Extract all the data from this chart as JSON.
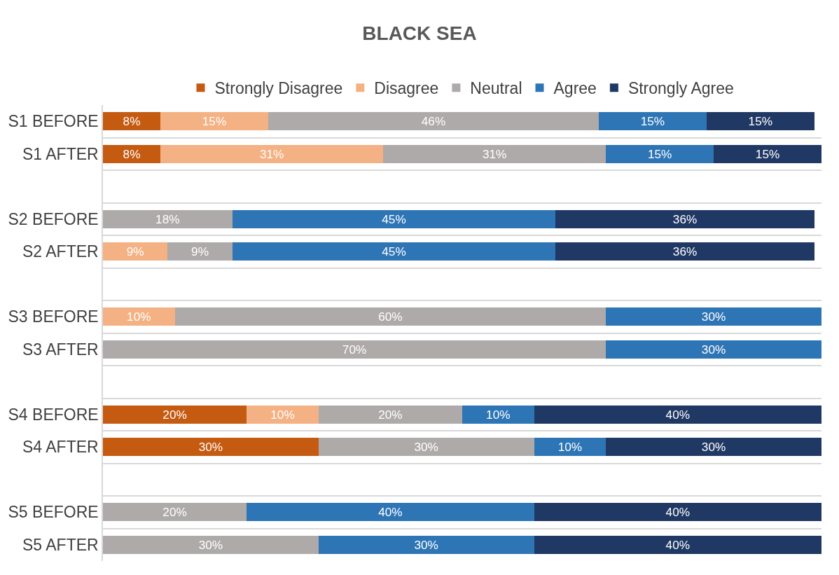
{
  "chart_data": {
    "type": "bar",
    "orientation": "horizontal",
    "stacked": true,
    "title": "BLACK SEA",
    "legend": "top",
    "grid": "y",
    "tick_labels": "y",
    "categories": [
      "S1 BEFORE",
      "S1 AFTER",
      null,
      "S2 BEFORE",
      "S2 AFTER",
      null,
      "S3 BEFORE",
      "S3 AFTER",
      null,
      "S4 BEFORE",
      "S4 AFTER",
      null,
      "S5 BEFORE",
      "S5 AFTER"
    ],
    "series": [
      {
        "name": "Strongly Disagree",
        "color": "#c55a11",
        "values": [
          8,
          8,
          null,
          null,
          null,
          null,
          null,
          null,
          null,
          20,
          30,
          null,
          null,
          null
        ],
        "value_labels": [
          "8%",
          "8%",
          null,
          null,
          null,
          null,
          null,
          null,
          null,
          "20%",
          "30%",
          null,
          null,
          null
        ]
      },
      {
        "name": "Disagree",
        "color": "#f4b183",
        "values": [
          15,
          31,
          null,
          null,
          9,
          null,
          10,
          null,
          null,
          10,
          null,
          null,
          null,
          null
        ],
        "value_labels": [
          "15%",
          "31%",
          null,
          null,
          "9%",
          null,
          "10%",
          null,
          null,
          "10%",
          null,
          null,
          null,
          null
        ]
      },
      {
        "name": "Neutral",
        "color": "#aeaaaa",
        "values": [
          46,
          31,
          null,
          18,
          9,
          null,
          60,
          70,
          null,
          20,
          30,
          null,
          20,
          30
        ],
        "value_labels": [
          "46%",
          "31%",
          null,
          "18%",
          "9%",
          null,
          "60%",
          "70%",
          null,
          "20%",
          "30%",
          null,
          "20%",
          "30%"
        ]
      },
      {
        "name": "Agree",
        "color": "#2e75b6",
        "values": [
          15,
          15,
          null,
          45,
          45,
          null,
          30,
          30,
          null,
          10,
          10,
          null,
          40,
          30
        ],
        "value_labels": [
          "15%",
          "15%",
          null,
          "45%",
          "45%",
          null,
          "30%",
          "30%",
          null,
          "10%",
          "10%",
          null,
          "40%",
          "30%"
        ]
      },
      {
        "name": "Strongly Agree",
        "color": "#203864",
        "values": [
          15,
          15,
          null,
          36,
          36,
          null,
          null,
          null,
          null,
          40,
          30,
          null,
          40,
          40
        ],
        "value_labels": [
          "15%",
          "15%",
          null,
          "36%",
          "36%",
          null,
          null,
          null,
          null,
          "40%",
          "30%",
          null,
          "40%",
          "40%"
        ]
      }
    ]
  }
}
